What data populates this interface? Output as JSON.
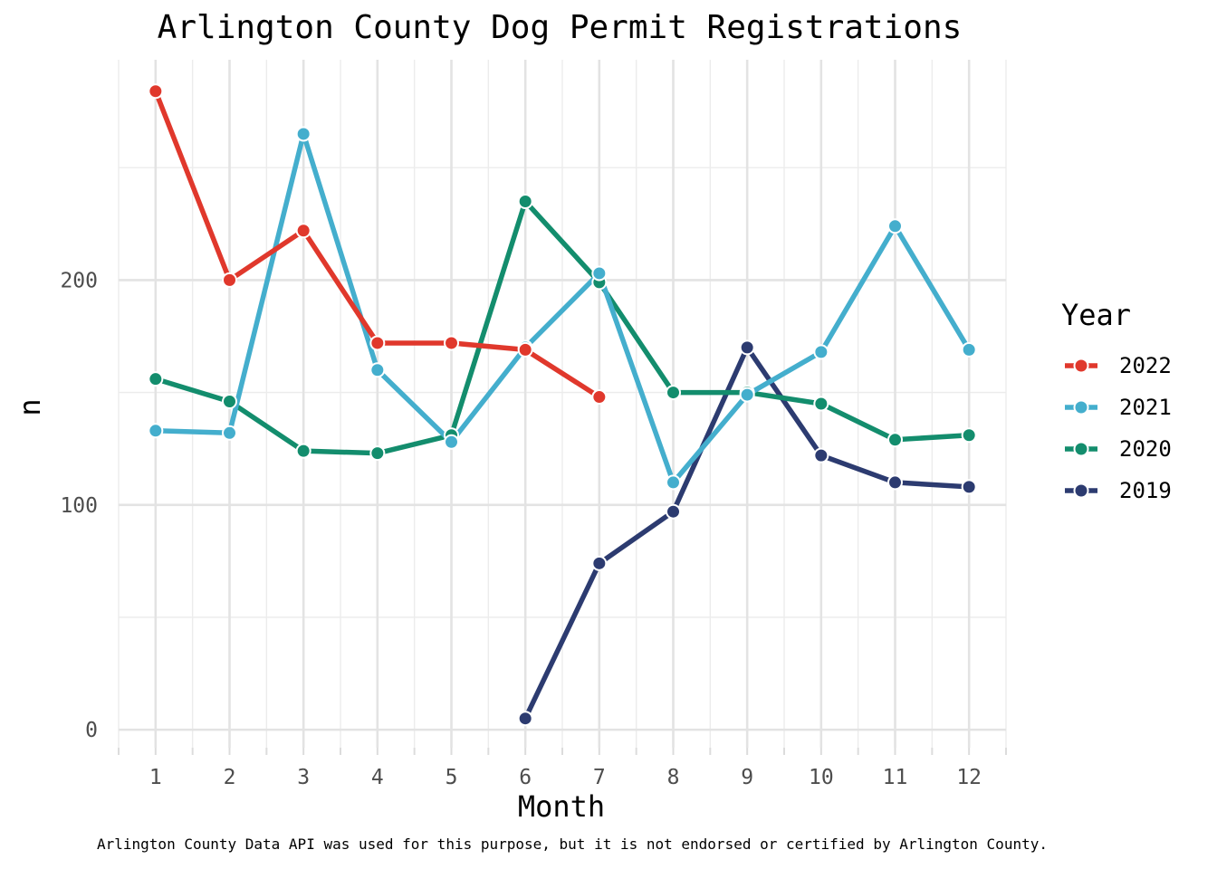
{
  "chart_data": {
    "type": "line",
    "title": "Arlington County Dog Permit Registrations",
    "xlabel": "Month",
    "ylabel": "n",
    "caption": "Arlington County Data API was used for this purpose, but it is not endorsed or certified by Arlington County.",
    "x": [
      1,
      2,
      3,
      4,
      5,
      6,
      7,
      8,
      9,
      10,
      11,
      12
    ],
    "xlim": [
      0.5,
      12.5
    ],
    "ylim": [
      -8,
      298
    ],
    "y_ticks": [
      0,
      100,
      200
    ],
    "y_minor_ticks": [
      50,
      150,
      250
    ],
    "grid": true,
    "legend": {
      "title": "Year",
      "position": "right"
    },
    "series": [
      {
        "name": "2022",
        "color": "#e0382c",
        "values": [
          284,
          200,
          222,
          172,
          172,
          169,
          148,
          null,
          null,
          null,
          null,
          null
        ]
      },
      {
        "name": "2021",
        "color": "#44aecd",
        "values": [
          133,
          132,
          265,
          160,
          128,
          170,
          203,
          110,
          149,
          168,
          224,
          169
        ]
      },
      {
        "name": "2020",
        "color": "#138d6d",
        "values": [
          156,
          146,
          124,
          123,
          131,
          235,
          199,
          150,
          150,
          145,
          129,
          131
        ]
      },
      {
        "name": "2019",
        "color": "#2c3b70",
        "values": [
          null,
          null,
          null,
          null,
          null,
          5,
          74,
          97,
          170,
          122,
          110,
          108
        ]
      }
    ]
  }
}
